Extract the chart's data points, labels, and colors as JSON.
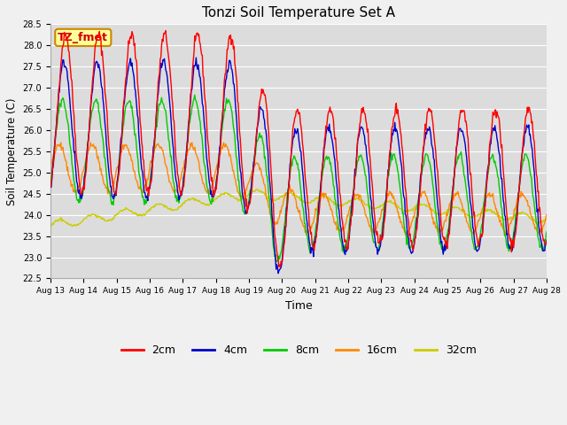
{
  "title": "Tonzi Soil Temperature Set A",
  "xlabel": "Time",
  "ylabel": "Soil Temperature (C)",
  "ylim": [
    22.5,
    28.5
  ],
  "yticks": [
    22.5,
    23.0,
    23.5,
    24.0,
    24.5,
    25.0,
    25.5,
    26.0,
    26.5,
    27.0,
    27.5,
    28.0,
    28.5
  ],
  "colors": {
    "2cm": "#ff0000",
    "4cm": "#0000cc",
    "8cm": "#00cc00",
    "16cm": "#ff8800",
    "32cm": "#cccc00"
  },
  "plot_bg": "#dcdcdc",
  "fig_bg": "#f0f0f0",
  "annotation_text": "TZ_fmet",
  "annotation_bg": "#ffff99",
  "annotation_border": "#cc8800",
  "n_days": 15,
  "start_day": 13,
  "end_day": 28
}
